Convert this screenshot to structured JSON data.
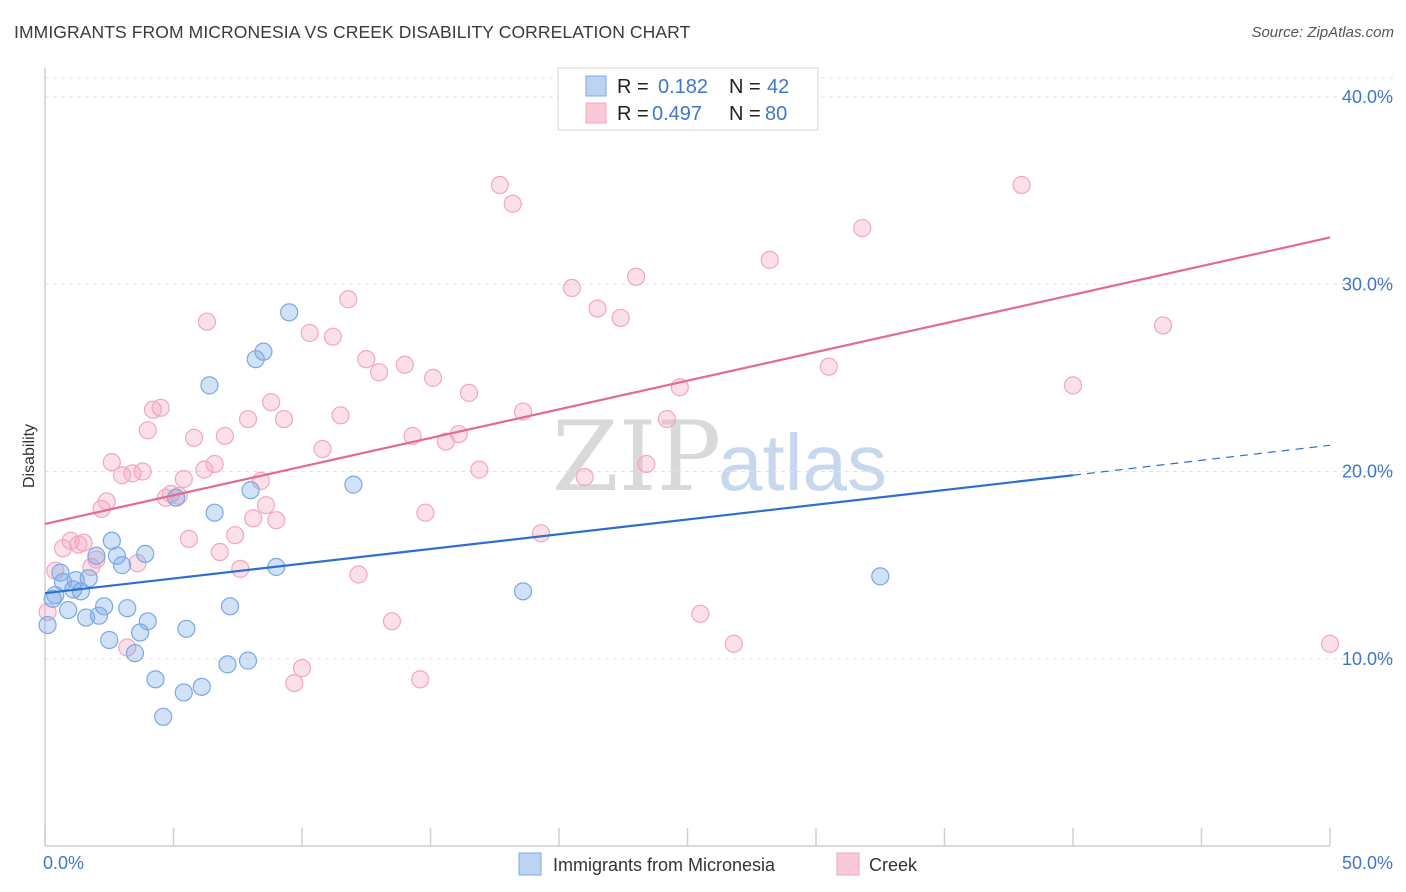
{
  "title": "IMMIGRANTS FROM MICRONESIA VS CREEK DISABILITY CORRELATION CHART",
  "source": "Source: ZipAtlas.com",
  "watermark": {
    "zip": "ZIP",
    "atlas": "atlas"
  },
  "legend": {
    "rows": [
      {
        "r_label": "R = ",
        "r_value": "0.182",
        "n_label": "N = ",
        "n_value": "42"
      },
      {
        "r_label": "R = ",
        "r_value": "0.497",
        "n_label": "N = ",
        "n_value": "80"
      }
    ]
  },
  "chart_data": {
    "type": "scatter",
    "title": "IMMIGRANTS FROM MICRONESIA VS CREEK DISABILITY CORRELATION CHART",
    "xlabel": "",
    "ylabel": "Disability",
    "xlim": [
      0,
      50
    ],
    "ylim": [
      0,
      42
    ],
    "x_tick_labels": [
      "0.0%",
      "50.0%"
    ],
    "y_ticks": [
      10,
      20,
      30,
      40
    ],
    "y_tick_labels": [
      "10.0%",
      "20.0%",
      "30.0%",
      "40.0%"
    ],
    "grid": true,
    "colors": {
      "micronesia": "#7aa8e6",
      "creek": "#f3a6bf",
      "micronesia_line": "#2d6fd0",
      "creek_line": "#e26a93",
      "axis_text": "#3f77c8"
    },
    "series": [
      {
        "name": "Immigrants from Micronesia",
        "R": 0.182,
        "N": 42,
        "trend": {
          "x0": 0,
          "y0": 13.5,
          "x1": 40,
          "y1": 19.8,
          "dashed_to_x": 50,
          "dashed_to_y": 21.4
        },
        "points": [
          [
            0.1,
            11.8
          ],
          [
            0.3,
            13.2
          ],
          [
            0.4,
            13.4
          ],
          [
            0.6,
            14.6
          ],
          [
            0.7,
            14.1
          ],
          [
            0.9,
            12.6
          ],
          [
            1.1,
            13.7
          ],
          [
            1.2,
            14.2
          ],
          [
            1.4,
            13.6
          ],
          [
            1.6,
            12.2
          ],
          [
            1.7,
            14.3
          ],
          [
            2.0,
            15.5
          ],
          [
            2.1,
            12.3
          ],
          [
            2.3,
            12.8
          ],
          [
            2.5,
            11.0
          ],
          [
            2.6,
            16.3
          ],
          [
            2.8,
            15.5
          ],
          [
            3.0,
            15.0
          ],
          [
            3.2,
            12.7
          ],
          [
            3.5,
            10.3
          ],
          [
            3.7,
            11.4
          ],
          [
            3.9,
            15.6
          ],
          [
            4.0,
            12.0
          ],
          [
            4.3,
            8.9
          ],
          [
            4.6,
            6.9
          ],
          [
            5.1,
            18.6
          ],
          [
            5.4,
            8.2
          ],
          [
            5.5,
            11.6
          ],
          [
            6.1,
            8.5
          ],
          [
            6.4,
            24.6
          ],
          [
            6.6,
            17.8
          ],
          [
            7.1,
            9.7
          ],
          [
            7.2,
            12.8
          ],
          [
            7.9,
            9.9
          ],
          [
            8.0,
            19.0
          ],
          [
            8.2,
            26.0
          ],
          [
            8.5,
            26.4
          ],
          [
            9.0,
            14.9
          ],
          [
            9.5,
            28.5
          ],
          [
            12.0,
            19.3
          ],
          [
            18.6,
            13.6
          ],
          [
            32.5,
            14.4
          ]
        ]
      },
      {
        "name": "Creek",
        "R": 0.497,
        "N": 80,
        "trend": {
          "x0": 0,
          "y0": 17.2,
          "x1": 50,
          "y1": 32.5
        },
        "points": [
          [
            0.1,
            12.5
          ],
          [
            0.4,
            14.7
          ],
          [
            0.7,
            15.9
          ],
          [
            1.0,
            16.3
          ],
          [
            1.3,
            16.1
          ],
          [
            1.5,
            16.2
          ],
          [
            1.8,
            14.9
          ],
          [
            2.0,
            15.3
          ],
          [
            2.2,
            18.0
          ],
          [
            2.4,
            18.4
          ],
          [
            2.6,
            20.5
          ],
          [
            3.0,
            19.8
          ],
          [
            3.2,
            10.6
          ],
          [
            3.4,
            19.9
          ],
          [
            3.6,
            15.1
          ],
          [
            3.8,
            20.0
          ],
          [
            4.0,
            22.2
          ],
          [
            4.2,
            23.3
          ],
          [
            4.5,
            23.4
          ],
          [
            4.7,
            18.6
          ],
          [
            4.9,
            18.8
          ],
          [
            5.2,
            18.7
          ],
          [
            5.4,
            19.6
          ],
          [
            5.6,
            16.4
          ],
          [
            5.8,
            21.8
          ],
          [
            6.2,
            20.1
          ],
          [
            6.3,
            28.0
          ],
          [
            6.6,
            20.4
          ],
          [
            6.8,
            15.7
          ],
          [
            7.0,
            21.9
          ],
          [
            7.4,
            16.6
          ],
          [
            7.6,
            14.8
          ],
          [
            7.9,
            22.8
          ],
          [
            8.1,
            17.5
          ],
          [
            8.4,
            19.5
          ],
          [
            8.6,
            18.2
          ],
          [
            8.8,
            23.7
          ],
          [
            9.0,
            17.4
          ],
          [
            9.3,
            22.8
          ],
          [
            9.7,
            8.7
          ],
          [
            10.0,
            9.5
          ],
          [
            10.3,
            27.4
          ],
          [
            10.8,
            21.2
          ],
          [
            11.2,
            27.2
          ],
          [
            11.5,
            23.0
          ],
          [
            11.8,
            29.2
          ],
          [
            12.2,
            14.5
          ],
          [
            12.5,
            26.0
          ],
          [
            13.0,
            25.3
          ],
          [
            13.5,
            12.0
          ],
          [
            14.0,
            25.7
          ],
          [
            14.3,
            21.9
          ],
          [
            14.6,
            8.9
          ],
          [
            14.8,
            17.8
          ],
          [
            15.1,
            25.0
          ],
          [
            15.6,
            21.6
          ],
          [
            16.1,
            22.0
          ],
          [
            16.5,
            24.2
          ],
          [
            16.9,
            20.1
          ],
          [
            17.7,
            35.3
          ],
          [
            18.2,
            34.3
          ],
          [
            18.6,
            23.2
          ],
          [
            19.3,
            16.7
          ],
          [
            20.5,
            29.8
          ],
          [
            21.0,
            19.7
          ],
          [
            21.5,
            28.7
          ],
          [
            22.4,
            28.2
          ],
          [
            23.0,
            30.4
          ],
          [
            23.4,
            20.4
          ],
          [
            24.2,
            22.8
          ],
          [
            24.7,
            24.5
          ],
          [
            25.5,
            12.4
          ],
          [
            26.8,
            10.8
          ],
          [
            28.2,
            31.3
          ],
          [
            30.5,
            25.6
          ],
          [
            31.8,
            33.0
          ],
          [
            38.0,
            35.3
          ],
          [
            40.0,
            24.6
          ],
          [
            43.5,
            27.8
          ],
          [
            50.0,
            10.8
          ]
        ]
      }
    ]
  },
  "bottom_legend": [
    {
      "label": "Immigrants from Micronesia"
    },
    {
      "label": "Creek"
    }
  ]
}
